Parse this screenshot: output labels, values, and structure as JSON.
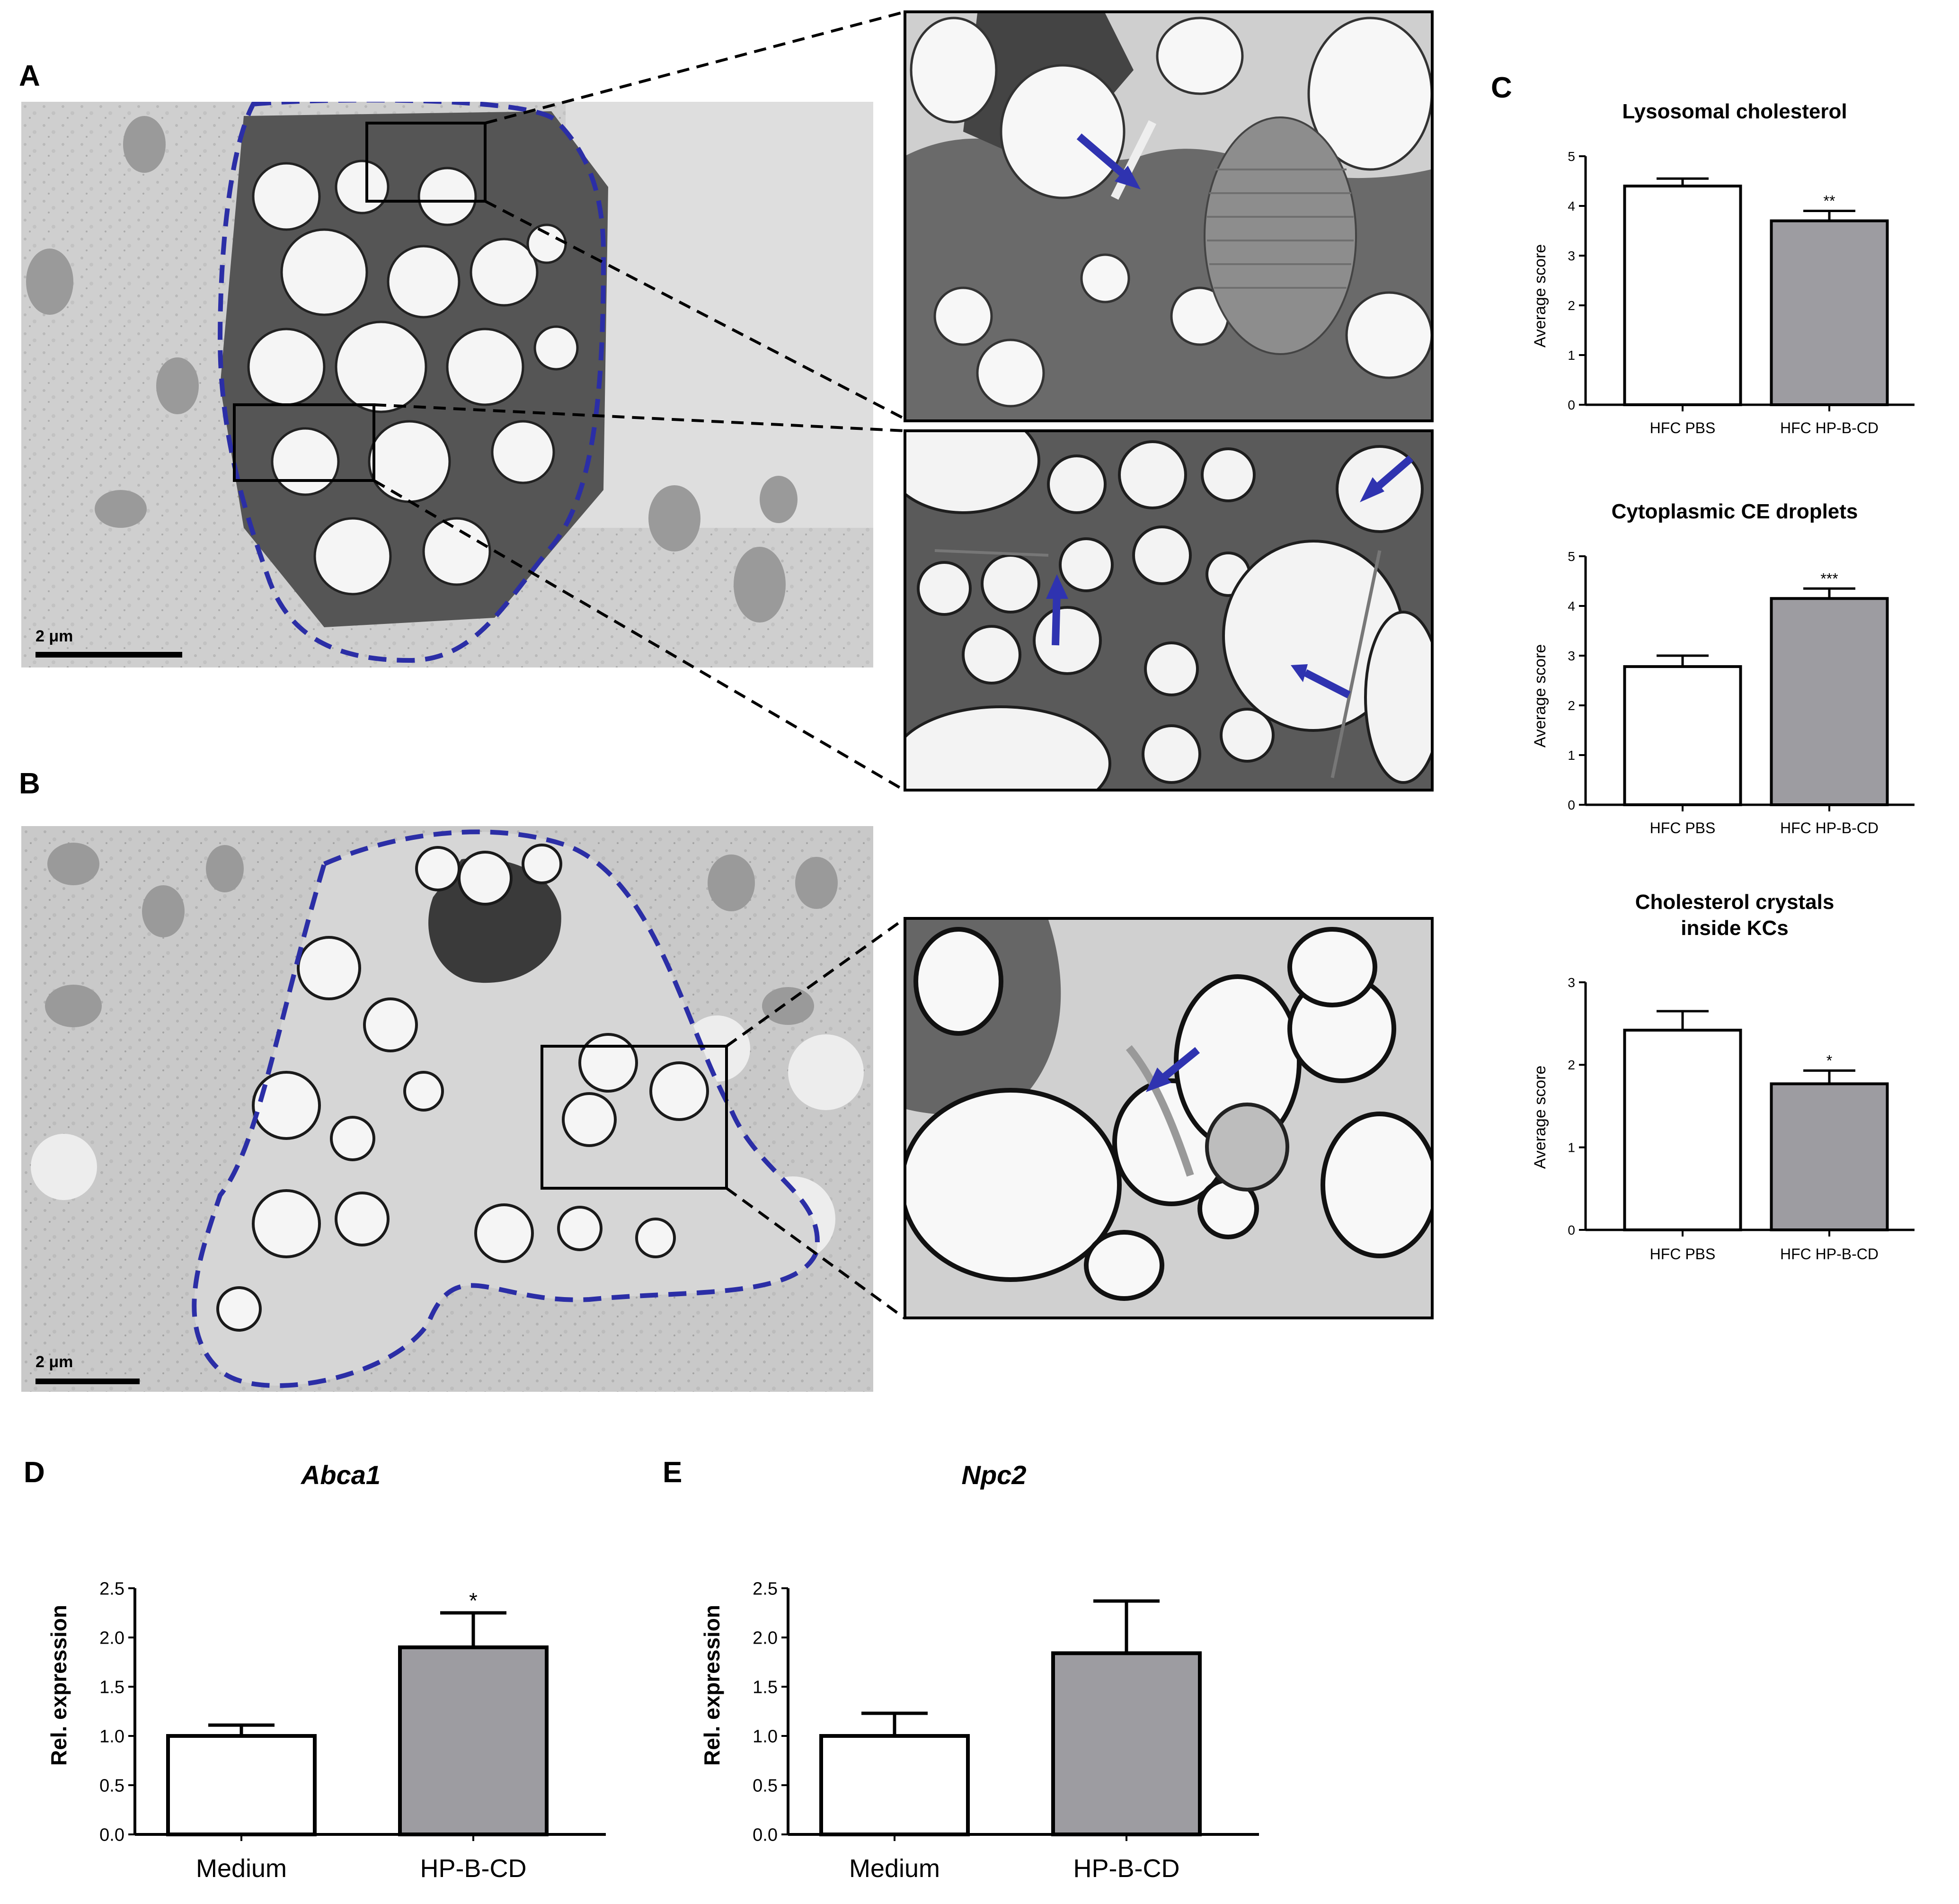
{
  "panels": {
    "A": {
      "letter": "A",
      "scalebar": "2 μm"
    },
    "B": {
      "letter": "B",
      "scalebar": "2 μm"
    },
    "C": {
      "letter": "C"
    },
    "D": {
      "letter": "D"
    },
    "E": {
      "letter": "E"
    }
  },
  "colors": {
    "outline": "#2b2ea6",
    "arrow": "#2f33b0",
    "bar_treated": "#9d9ca1",
    "bar_control": "#ffffff"
  },
  "chart_data": [
    {
      "id": "C1",
      "type": "bar",
      "title": "Lysosomal cholesterol",
      "ylabel": "Average score",
      "ylim": [
        0,
        5
      ],
      "yticks": [
        "0",
        "1",
        "2",
        "3",
        "4",
        "5"
      ],
      "categories": [
        "HFC PBS",
        "HFC HP-B-CD"
      ],
      "values": [
        4.4,
        3.7
      ],
      "errors": [
        0.15,
        0.2
      ],
      "significance": [
        "",
        "**"
      ]
    },
    {
      "id": "C2",
      "type": "bar",
      "title": "Cytoplasmic CE droplets",
      "ylabel": "Average score",
      "ylim": [
        0,
        5
      ],
      "yticks": [
        "0",
        "1",
        "2",
        "3",
        "4",
        "5"
      ],
      "categories": [
        "HFC PBS",
        "HFC HP-B-CD"
      ],
      "values": [
        2.78,
        4.15
      ],
      "errors": [
        0.22,
        0.2
      ],
      "significance": [
        "",
        "***"
      ]
    },
    {
      "id": "C3",
      "type": "bar",
      "title_lines": [
        "Cholesterol crystals",
        "inside KCs"
      ],
      "ylabel": "Average score",
      "ylim": [
        0,
        3
      ],
      "yticks": [
        "0",
        "1",
        "2",
        "3"
      ],
      "categories": [
        "HFC PBS",
        "HFC HP-B-CD"
      ],
      "values": [
        2.42,
        1.77
      ],
      "errors": [
        0.23,
        0.16
      ],
      "significance": [
        "",
        "*"
      ]
    },
    {
      "id": "D",
      "type": "bar",
      "title": "Abca1",
      "ylabel": "Rel. expression",
      "ylim": [
        0,
        2.5
      ],
      "yticks": [
        "0.0",
        "0.5",
        "1.0",
        "1.5",
        "2.0",
        "2.5"
      ],
      "categories": [
        "Medium",
        "HP-B-CD"
      ],
      "values": [
        1.0,
        1.9
      ],
      "errors": [
        0.11,
        0.35
      ],
      "significance": [
        "",
        "*"
      ]
    },
    {
      "id": "E",
      "type": "bar",
      "title": "Npc2",
      "ylabel": "Rel. expression",
      "ylim": [
        0,
        2.5
      ],
      "yticks": [
        "0.0",
        "0.5",
        "1.0",
        "1.5",
        "2.0",
        "2.5"
      ],
      "categories": [
        "Medium",
        "HP-B-CD"
      ],
      "values": [
        1.0,
        1.84
      ],
      "errors": [
        0.23,
        0.53
      ],
      "significance": [
        "",
        ""
      ]
    }
  ]
}
